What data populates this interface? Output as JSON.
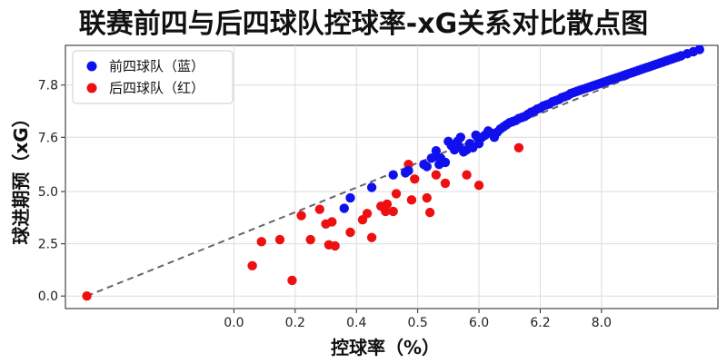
{
  "chart_data": {
    "type": "scatter",
    "title": "联赛前四与后四球队控球率-xG关系对比散点图",
    "xlabel": "控球率（%）",
    "ylabel": "球进期预（xG）",
    "x_ticks": [
      "0.0",
      "0.2",
      "0.4",
      "0.5",
      "6.0",
      "6.2",
      "8.0"
    ],
    "y_ticks": [
      "0.0",
      "2.5",
      "5.0",
      "7.6",
      "7.8"
    ],
    "grid": true,
    "legend_position": "top-left",
    "trend_line": {
      "style": "dashed",
      "color": "#666666"
    },
    "series": [
      {
        "name": "前四球队（蓝）",
        "color": "#1010ee",
        "points": [
          [
            3.8,
            4.7
          ],
          [
            4.5,
            5.2
          ],
          [
            3.6,
            4.2
          ],
          [
            5.2,
            5.8
          ],
          [
            5.6,
            5.9
          ],
          [
            5.7,
            6.0
          ],
          [
            6.2,
            6.3
          ],
          [
            6.3,
            6.2
          ],
          [
            6.45,
            6.6
          ],
          [
            6.6,
            6.7
          ],
          [
            6.7,
            6.3
          ],
          [
            6.75,
            6.6
          ],
          [
            6.9,
            6.4
          ],
          [
            6.6,
            6.95
          ],
          [
            7.1,
            7.2
          ],
          [
            7.3,
            7.4
          ],
          [
            7.5,
            6.9
          ],
          [
            7.6,
            7.0
          ],
          [
            7.4,
            7.6
          ],
          [
            7.8,
            7.1
          ],
          [
            7.9,
            7.7
          ],
          [
            8.0,
            7.3
          ],
          [
            8.1,
            7.6
          ],
          [
            8.3,
            7.9
          ],
          [
            7.0,
            7.4
          ],
          [
            7.2,
            7.0
          ],
          [
            7.35,
            7.15
          ],
          [
            7.7,
            7.3
          ],
          [
            8.0,
            7.5
          ],
          [
            8.2,
            7.7
          ],
          [
            8.4,
            7.8
          ],
          [
            8.5,
            7.6
          ],
          [
            8.6,
            7.85
          ],
          [
            8.7,
            8.0
          ],
          [
            8.8,
            8.1
          ],
          [
            8.9,
            8.2
          ],
          [
            9.0,
            8.3
          ],
          [
            9.1,
            8.35
          ],
          [
            9.2,
            8.4
          ],
          [
            9.3,
            8.5
          ],
          [
            9.4,
            8.55
          ],
          [
            9.5,
            8.6
          ],
          [
            9.6,
            8.7
          ],
          [
            9.7,
            8.8
          ],
          [
            9.8,
            8.85
          ],
          [
            9.9,
            8.95
          ],
          [
            10.0,
            9.0
          ],
          [
            10.1,
            9.1
          ],
          [
            10.2,
            9.15
          ],
          [
            10.3,
            9.2
          ],
          [
            10.4,
            9.3
          ],
          [
            10.5,
            9.35
          ],
          [
            10.6,
            9.4
          ],
          [
            10.7,
            9.5
          ],
          [
            10.8,
            9.55
          ],
          [
            10.9,
            9.6
          ],
          [
            11.0,
            9.7
          ],
          [
            11.1,
            9.75
          ],
          [
            11.2,
            9.8
          ],
          [
            11.3,
            9.85
          ],
          [
            11.4,
            9.9
          ],
          [
            11.5,
            9.95
          ],
          [
            11.6,
            10.0
          ],
          [
            11.7,
            10.05
          ],
          [
            11.8,
            10.1
          ],
          [
            11.9,
            10.15
          ],
          [
            12.0,
            10.2
          ],
          [
            12.1,
            10.25
          ],
          [
            12.2,
            10.3
          ],
          [
            12.3,
            10.35
          ],
          [
            12.4,
            10.4
          ],
          [
            12.5,
            10.45
          ],
          [
            12.6,
            10.5
          ],
          [
            12.7,
            10.55
          ],
          [
            12.8,
            10.6
          ],
          [
            12.9,
            10.65
          ],
          [
            13.0,
            10.7
          ],
          [
            13.1,
            10.75
          ],
          [
            13.2,
            10.8
          ],
          [
            13.3,
            10.85
          ],
          [
            13.4,
            10.9
          ],
          [
            13.5,
            10.95
          ],
          [
            13.6,
            11.0
          ],
          [
            13.7,
            11.05
          ],
          [
            13.8,
            11.1
          ],
          [
            13.9,
            11.15
          ],
          [
            14.0,
            11.2
          ],
          [
            14.1,
            11.25
          ],
          [
            14.2,
            11.3
          ],
          [
            14.3,
            11.35
          ],
          [
            14.4,
            11.4
          ],
          [
            14.5,
            11.45
          ],
          [
            14.6,
            11.5
          ],
          [
            14.8,
            11.6
          ],
          [
            15.0,
            11.7
          ],
          [
            15.2,
            11.8
          ]
        ]
      },
      {
        "name": "后四球队（红）",
        "color": "#ee1010",
        "points": [
          [
            -4.8,
            0.0
          ],
          [
            0.6,
            1.45
          ],
          [
            1.9,
            0.75
          ],
          [
            1.5,
            2.7
          ],
          [
            2.2,
            3.85
          ],
          [
            2.5,
            2.7
          ],
          [
            3.1,
            2.45
          ],
          [
            3.3,
            2.4
          ],
          [
            3.0,
            3.45
          ],
          [
            3.2,
            3.55
          ],
          [
            3.8,
            3.05
          ],
          [
            4.2,
            3.65
          ],
          [
            4.35,
            3.95
          ],
          [
            4.5,
            2.8
          ],
          [
            4.8,
            4.3
          ],
          [
            4.95,
            4.05
          ],
          [
            5.0,
            4.4
          ],
          [
            5.3,
            4.9
          ],
          [
            5.7,
            6.3
          ],
          [
            5.8,
            4.6
          ],
          [
            5.9,
            5.6
          ],
          [
            6.3,
            4.7
          ],
          [
            6.4,
            4.0
          ],
          [
            6.6,
            5.8
          ],
          [
            6.9,
            5.4
          ],
          [
            7.6,
            5.8
          ],
          [
            8.0,
            5.3
          ],
          [
            9.3,
            7.1
          ],
          [
            0.9,
            2.6
          ],
          [
            2.8,
            4.15
          ],
          [
            5.2,
            4.05
          ]
        ]
      }
    ]
  }
}
